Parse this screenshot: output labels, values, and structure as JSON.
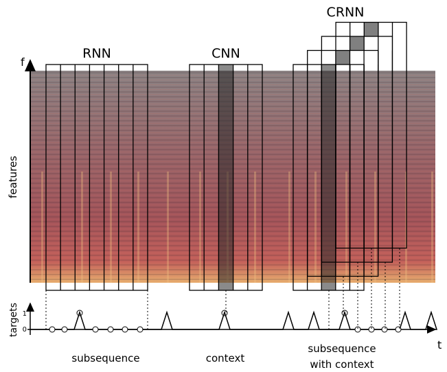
{
  "titles": {
    "rnn": "RNN",
    "cnn": "CNN",
    "crnn": "CRNN"
  },
  "axes": {
    "f": "f",
    "features": "features",
    "targets": "targets",
    "t": "t",
    "one": "1",
    "zero": "0"
  },
  "captions": {
    "rnn": "subsequence",
    "cnn": "context",
    "crnn": [
      "subsequence",
      "with context"
    ]
  }
}
